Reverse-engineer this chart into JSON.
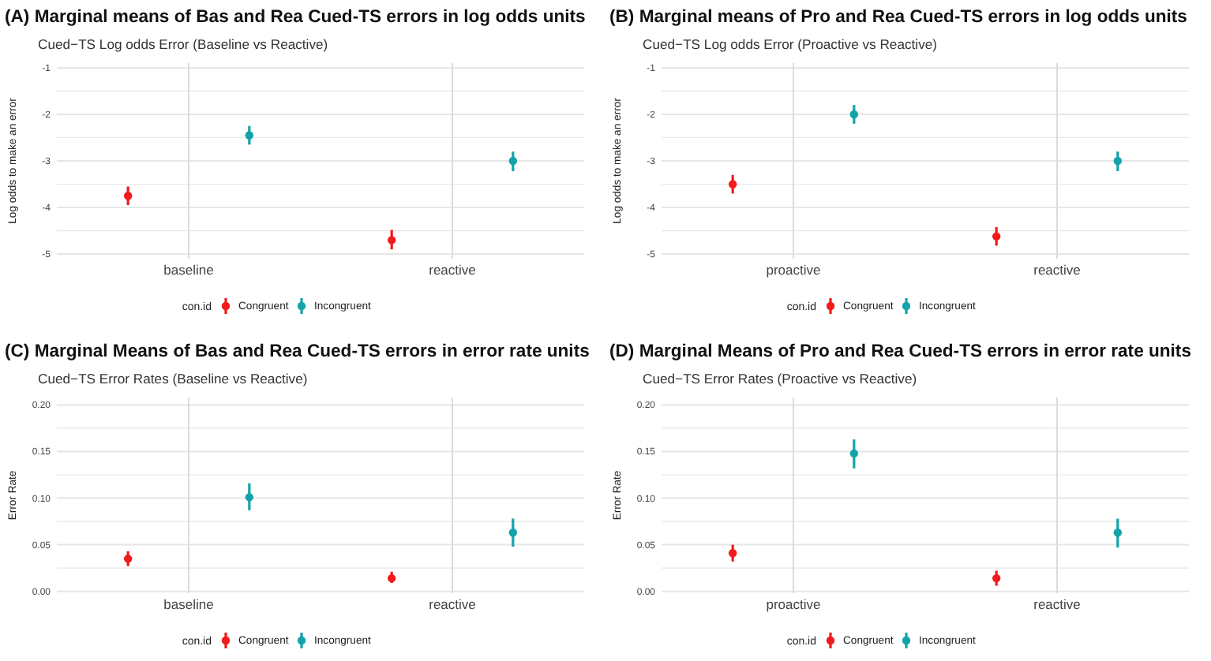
{
  "chart_data": [
    {
      "type": "scatter",
      "title": "(A) Marginal means of Bas and Rea Cued-TS errors in log odds units",
      "subtitle": "Cued−TS Log odds Error (Baseline vs Reactive)",
      "ylabel": "Log odds to make an error",
      "legend_title": "con.id",
      "categories": [
        "baseline",
        "reactive"
      ],
      "ylim": [
        -5.1,
        -0.9
      ],
      "yticks": [
        -1,
        {
          "value": -1.5,
          "label": null
        },
        -2,
        {
          "value": -2.5,
          "label": null
        },
        -3,
        {
          "value": -3.5,
          "label": null
        },
        -4,
        {
          "value": -4.5,
          "label": null
        },
        -5
      ],
      "grid": true,
      "legend": "bottom",
      "marker": "circle",
      "series": [
        {
          "name": "Congruent",
          "color": "#f21a1a",
          "values": [
            -3.75,
            -4.7
          ],
          "errors": [
            [
              -3.95,
              -3.55
            ],
            [
              -4.9,
              -4.48
            ]
          ]
        },
        {
          "name": "Incongruent",
          "color": "#14a3a8",
          "values": [
            -2.45,
            -3.0
          ],
          "errors": [
            [
              -2.65,
              -2.25
            ],
            [
              -3.22,
              -2.8
            ]
          ]
        }
      ]
    },
    {
      "type": "scatter",
      "title": "(B) Marginal means of Pro and Rea Cued-TS errors in log odds units",
      "subtitle": "Cued−TS Log odds Error (Proactive vs Reactive)",
      "ylabel": "Log odds to make an error",
      "legend_title": "con.id",
      "categories": [
        "proactive",
        "reactive"
      ],
      "ylim": [
        -5.1,
        -0.9
      ],
      "yticks": [
        -1,
        {
          "value": -1.5,
          "label": null
        },
        -2,
        {
          "value": -2.5,
          "label": null
        },
        -3,
        {
          "value": -3.5,
          "label": null
        },
        -4,
        {
          "value": -4.5,
          "label": null
        },
        -5
      ],
      "grid": true,
      "legend": "bottom",
      "marker": "circle",
      "series": [
        {
          "name": "Congruent",
          "color": "#f21a1a",
          "values": [
            -3.5,
            -4.62
          ],
          "errors": [
            [
              -3.7,
              -3.3
            ],
            [
              -4.82,
              -4.42
            ]
          ]
        },
        {
          "name": "Incongruent",
          "color": "#14a3a8",
          "values": [
            -2.0,
            -3.0
          ],
          "errors": [
            [
              -2.2,
              -1.8
            ],
            [
              -3.22,
              -2.8
            ]
          ]
        }
      ]
    },
    {
      "type": "scatter",
      "title": "(C) Marginal Means of Bas and Rea Cued-TS errors in error rate units",
      "subtitle": "Cued−TS Error Rates (Baseline vs Reactive)",
      "ylabel": "Error Rate",
      "legend_title": "con.id",
      "categories": [
        "baseline",
        "reactive"
      ],
      "ylim": [
        -0.002,
        0.208
      ],
      "yticks": [
        {
          "value": 0,
          "label": "0.00"
        },
        {
          "value": 0.025,
          "label": null
        },
        {
          "value": 0.05,
          "label": "0.05"
        },
        {
          "value": 0.075,
          "label": null
        },
        {
          "value": 0.1,
          "label": "0.10"
        },
        {
          "value": 0.125,
          "label": null
        },
        {
          "value": 0.15,
          "label": "0.15"
        },
        {
          "value": 0.175,
          "label": null
        },
        {
          "value": 0.2,
          "label": "0.20"
        }
      ],
      "grid": true,
      "legend": "bottom",
      "marker": "circle",
      "series": [
        {
          "name": "Congruent",
          "color": "#f21a1a",
          "values": [
            0.035,
            0.014
          ],
          "errors": [
            [
              0.027,
              0.043
            ],
            [
              0.009,
              0.021
            ]
          ]
        },
        {
          "name": "Incongruent",
          "color": "#14a3a8",
          "values": [
            0.101,
            0.063
          ],
          "errors": [
            [
              0.087,
              0.116
            ],
            [
              0.048,
              0.078
            ]
          ]
        }
      ]
    },
    {
      "type": "scatter",
      "title": "(D) Marginal Means of Pro and Rea Cued-TS errors in error rate units",
      "subtitle": "Cued−TS Error Rates (Proactive vs Reactive)",
      "ylabel": "Error Rate",
      "legend_title": "con.id",
      "categories": [
        "proactive",
        "reactive"
      ],
      "ylim": [
        -0.002,
        0.208
      ],
      "yticks": [
        {
          "value": 0,
          "label": "0.00"
        },
        {
          "value": 0.025,
          "label": null
        },
        {
          "value": 0.05,
          "label": "0.05"
        },
        {
          "value": 0.075,
          "label": null
        },
        {
          "value": 0.1,
          "label": "0.10"
        },
        {
          "value": 0.125,
          "label": null
        },
        {
          "value": 0.15,
          "label": "0.15"
        },
        {
          "value": 0.175,
          "label": null
        },
        {
          "value": 0.2,
          "label": "0.20"
        }
      ],
      "grid": true,
      "legend": "bottom",
      "marker": "circle",
      "series": [
        {
          "name": "Congruent",
          "color": "#f21a1a",
          "values": [
            0.041,
            0.014
          ],
          "errors": [
            [
              0.032,
              0.05
            ],
            [
              0.006,
              0.022
            ]
          ]
        },
        {
          "name": "Incongruent",
          "color": "#14a3a8",
          "values": [
            0.148,
            0.063
          ],
          "errors": [
            [
              0.132,
              0.163
            ],
            [
              0.047,
              0.078
            ]
          ]
        }
      ]
    }
  ]
}
